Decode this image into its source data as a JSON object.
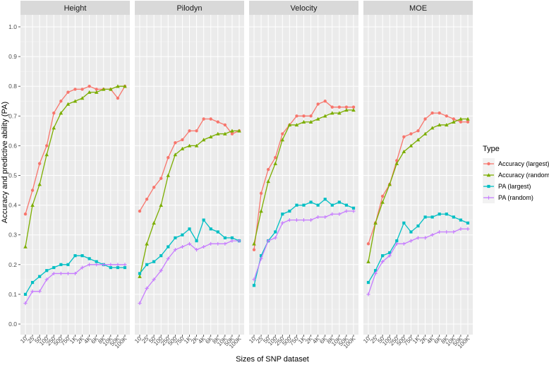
{
  "chart_data": {
    "type": "line",
    "xlabel": "Sizes of SNP dataset",
    "ylabel": "Accuracy and predictive ability (PA)",
    "ylim": [
      0.0,
      1.0
    ],
    "yticks": [
      "0.0",
      "0.1",
      "0.2",
      "0.3",
      "0.4",
      "0.5",
      "0.6",
      "0.7",
      "0.8",
      "0.9",
      "1.0"
    ],
    "categories": [
      "10",
      "25",
      "50",
      "100",
      "250",
      "500",
      "750",
      "1K",
      "2K",
      "4K",
      "6K",
      "8K",
      "10K",
      "50K",
      "100K"
    ],
    "legend": {
      "title": "Type",
      "position": "right",
      "entries": [
        "Accuracy (largest)",
        "Accuracy (random)",
        "PA (largest)",
        "PA (random)"
      ]
    },
    "colors": {
      "Accuracy (largest)": "#F8766D",
      "Accuracy (random)": "#7CAE00",
      "PA (largest)": "#00BFC4",
      "PA (random)": "#C77CFF"
    },
    "panels": [
      {
        "title": "Height",
        "series": [
          {
            "name": "Accuracy (largest)",
            "values": [
              0.37,
              0.45,
              0.54,
              0.6,
              0.71,
              0.75,
              0.78,
              0.79,
              0.79,
              0.8,
              0.79,
              0.79,
              0.79,
              0.76,
              0.8
            ]
          },
          {
            "name": "Accuracy (random)",
            "values": [
              0.26,
              0.4,
              0.47,
              0.57,
              0.66,
              0.71,
              0.74,
              0.75,
              0.76,
              0.78,
              0.78,
              0.79,
              0.79,
              0.8,
              0.8
            ]
          },
          {
            "name": "PA (largest)",
            "values": [
              0.1,
              0.14,
              0.16,
              0.18,
              0.19,
              0.2,
              0.2,
              0.23,
              0.23,
              0.22,
              0.21,
              0.2,
              0.19,
              0.19,
              0.19
            ]
          },
          {
            "name": "PA (random)",
            "values": [
              0.07,
              0.11,
              0.11,
              0.15,
              0.17,
              0.17,
              0.17,
              0.17,
              0.19,
              0.2,
              0.2,
              0.2,
              0.2,
              0.2,
              0.2
            ]
          }
        ]
      },
      {
        "title": "Pilodyn",
        "series": [
          {
            "name": "Accuracy (largest)",
            "values": [
              0.38,
              0.42,
              0.46,
              0.49,
              0.56,
              0.61,
              0.62,
              0.65,
              0.65,
              0.69,
              0.69,
              0.68,
              0.67,
              0.64,
              0.65
            ]
          },
          {
            "name": "Accuracy (random)",
            "values": [
              0.16,
              0.27,
              0.34,
              0.4,
              0.5,
              0.57,
              0.59,
              0.6,
              0.6,
              0.62,
              0.63,
              0.64,
              0.64,
              0.65,
              0.65
            ]
          },
          {
            "name": "PA (largest)",
            "values": [
              0.17,
              0.2,
              0.21,
              0.23,
              0.26,
              0.29,
              0.3,
              0.32,
              0.28,
              0.35,
              0.32,
              0.31,
              0.29,
              0.29,
              0.28
            ]
          },
          {
            "name": "PA (random)",
            "values": [
              0.07,
              0.12,
              0.15,
              0.18,
              0.22,
              0.25,
              0.26,
              0.27,
              0.25,
              0.26,
              0.27,
              0.27,
              0.27,
              0.28,
              0.28
            ]
          }
        ]
      },
      {
        "title": "Velocity",
        "series": [
          {
            "name": "Accuracy (largest)",
            "values": [
              0.25,
              0.44,
              0.52,
              0.56,
              0.64,
              0.67,
              0.7,
              0.7,
              0.7,
              0.74,
              0.75,
              0.73,
              0.73,
              0.73,
              0.73
            ]
          },
          {
            "name": "Accuracy (random)",
            "values": [
              0.27,
              0.38,
              0.48,
              0.54,
              0.62,
              0.67,
              0.67,
              0.68,
              0.68,
              0.69,
              0.7,
              0.71,
              0.71,
              0.72,
              0.72
            ]
          },
          {
            "name": "PA (largest)",
            "values": [
              0.13,
              0.23,
              0.28,
              0.31,
              0.37,
              0.38,
              0.4,
              0.4,
              0.41,
              0.4,
              0.42,
              0.4,
              0.41,
              0.4,
              0.39
            ]
          },
          {
            "name": "PA (random)",
            "values": [
              0.15,
              0.22,
              0.28,
              0.29,
              0.34,
              0.35,
              0.35,
              0.35,
              0.35,
              0.36,
              0.36,
              0.37,
              0.37,
              0.38,
              0.38
            ]
          }
        ]
      },
      {
        "title": "MOE",
        "series": [
          {
            "name": "Accuracy (largest)",
            "values": [
              0.27,
              0.34,
              0.43,
              0.47,
              0.55,
              0.63,
              0.64,
              0.65,
              0.69,
              0.71,
              0.71,
              0.7,
              0.69,
              0.68,
              0.68
            ]
          },
          {
            "name": "Accuracy (random)",
            "values": [
              0.21,
              0.34,
              0.41,
              0.47,
              0.54,
              0.58,
              0.6,
              0.62,
              0.64,
              0.66,
              0.67,
              0.67,
              0.68,
              0.69,
              0.69
            ]
          },
          {
            "name": "PA (largest)",
            "values": [
              0.14,
              0.18,
              0.23,
              0.24,
              0.28,
              0.34,
              0.31,
              0.33,
              0.36,
              0.36,
              0.37,
              0.37,
              0.36,
              0.35,
              0.34
            ]
          },
          {
            "name": "PA (random)",
            "values": [
              0.1,
              0.17,
              0.21,
              0.23,
              0.27,
              0.27,
              0.28,
              0.29,
              0.29,
              0.3,
              0.31,
              0.31,
              0.31,
              0.32,
              0.32
            ]
          }
        ]
      }
    ]
  }
}
